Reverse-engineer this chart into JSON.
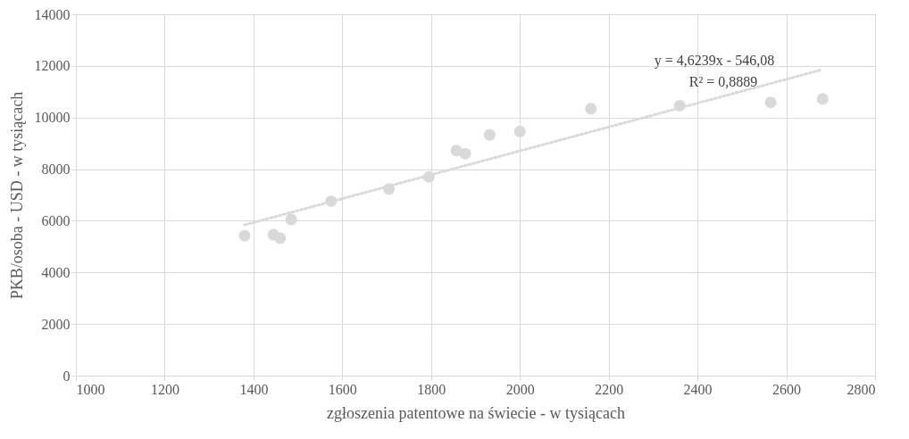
{
  "chart_data": {
    "type": "scatter",
    "xlabel": "zgłoszenia patentowe na świecie - w tysiącach",
    "ylabel": "PKB/osoba - USD - w tysiącach",
    "xlim": [
      1000,
      2800
    ],
    "xticks": [
      1000,
      1200,
      1400,
      1600,
      1800,
      2000,
      2200,
      2400,
      2600,
      2800
    ],
    "ylim": [
      0,
      14000
    ],
    "yticks": [
      0,
      2000,
      4000,
      6000,
      8000,
      10000,
      12000,
      14000
    ],
    "grid": true,
    "annotations": [
      "y = 4,6239x - 546,08",
      "R² = 0,8889"
    ],
    "series": [
      {
        "type": "scatter",
        "color": "#d9d9d9",
        "marker": "circle",
        "x": [
          1380,
          1445,
          1460,
          1485,
          1575,
          1705,
          1795,
          1857,
          1877,
          1932,
          2000,
          2160,
          2360,
          2565,
          2682
        ],
        "values": [
          5420,
          5460,
          5330,
          6050,
          6760,
          7230,
          7700,
          8720,
          8600,
          9330,
          9460,
          10340,
          10460,
          10590,
          10720
        ]
      },
      {
        "type": "line",
        "color": "#d9d9d9",
        "line_style": "dotted",
        "x": [
          1380,
          2680
        ],
        "values": [
          5840,
          11850
        ]
      }
    ]
  }
}
